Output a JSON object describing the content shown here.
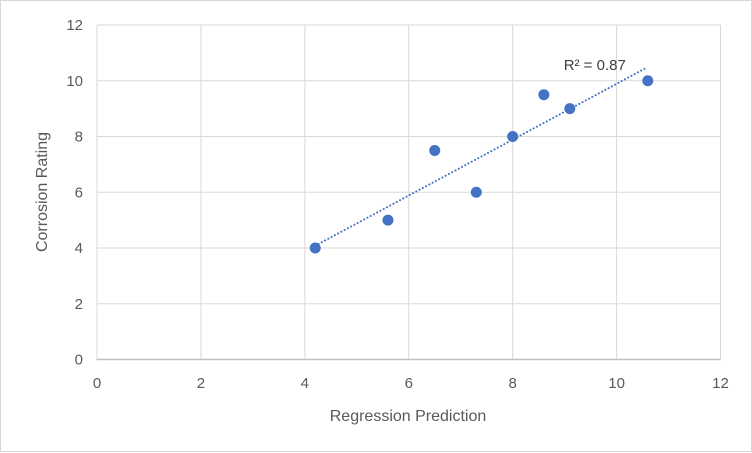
{
  "chart_data": {
    "type": "scatter",
    "title": "",
    "xlabel": "Regression Prediction",
    "ylabel": "Corrosion Rating",
    "xlim": [
      0,
      12
    ],
    "ylim": [
      0,
      12
    ],
    "xticks": [
      0,
      2,
      4,
      6,
      8,
      10,
      12
    ],
    "yticks": [
      0,
      2,
      4,
      6,
      8,
      10,
      12
    ],
    "grid": true,
    "legend": "none",
    "series": [
      {
        "marker": "circle",
        "color": "#4472C4",
        "points": [
          {
            "x": 4.2,
            "y": 4
          },
          {
            "x": 5.6,
            "y": 5
          },
          {
            "x": 6.5,
            "y": 7.5
          },
          {
            "x": 7.3,
            "y": 6
          },
          {
            "x": 8.0,
            "y": 8
          },
          {
            "x": 8.6,
            "y": 9.5
          },
          {
            "x": 9.1,
            "y": 9
          },
          {
            "x": 10.6,
            "y": 10
          }
        ]
      }
    ],
    "trendline": {
      "type": "linear",
      "style": "dotted",
      "color": "#4472C4",
      "x1": 4.2,
      "y1": 4.08,
      "x2": 10.55,
      "y2": 10.44,
      "r_squared": 0.87,
      "label": "R² = 0.87",
      "label_x": 9.58,
      "label_y": 10.56
    },
    "colors": {
      "marker": "#4472C4",
      "trendline": "#4472C4",
      "gridline": "#D9D9D9",
      "axis_line": "#BFBFBF",
      "tick_text": "#595959",
      "title_text": "#595959",
      "annotation_text": "#404040",
      "background": "#FFFFFF",
      "border": "#D8D8D8"
    }
  }
}
